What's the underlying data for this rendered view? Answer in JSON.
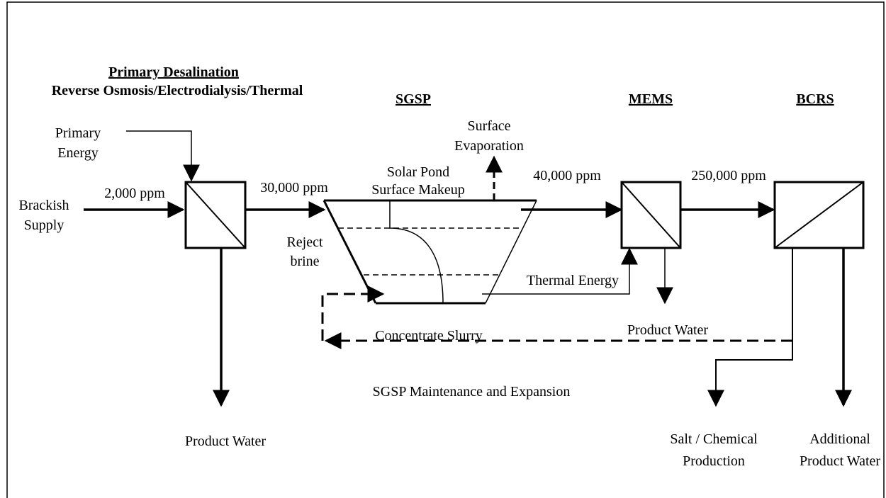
{
  "headings": {
    "primary": "Primary Desalination",
    "primary_sub": "Reverse Osmosis/Electrodialysis/Thermal",
    "sgsp": "SGSP",
    "mems": "MEMS",
    "bcrs": "BCRS"
  },
  "labels": {
    "primary_energy": [
      "Primary",
      "Energy"
    ],
    "surface_evaporation": [
      "Surface",
      "Evaporation"
    ],
    "solar_pond": [
      "Solar Pond",
      "Surface Makeup"
    ],
    "brackish_supply": [
      "Brackish",
      "Supply"
    ],
    "reject_brine": [
      "Reject",
      "brine"
    ],
    "salt_chemical": [
      "Salt / Chemical",
      "Production"
    ],
    "additional_water": [
      "Additional",
      "Product Water"
    ],
    "ppm_1": "2,000 ppm",
    "ppm_2": "30,000 ppm",
    "ppm_3": "40,000 ppm",
    "ppm_4": "250,000 ppm",
    "thermal_energy": "Thermal Energy",
    "concentrate_slurry": "Concentrate Slurry",
    "product_water_mems": "Product Water",
    "maintenance": "SGSP Maintenance and Expansion",
    "product_water_primary": "Product Water"
  }
}
